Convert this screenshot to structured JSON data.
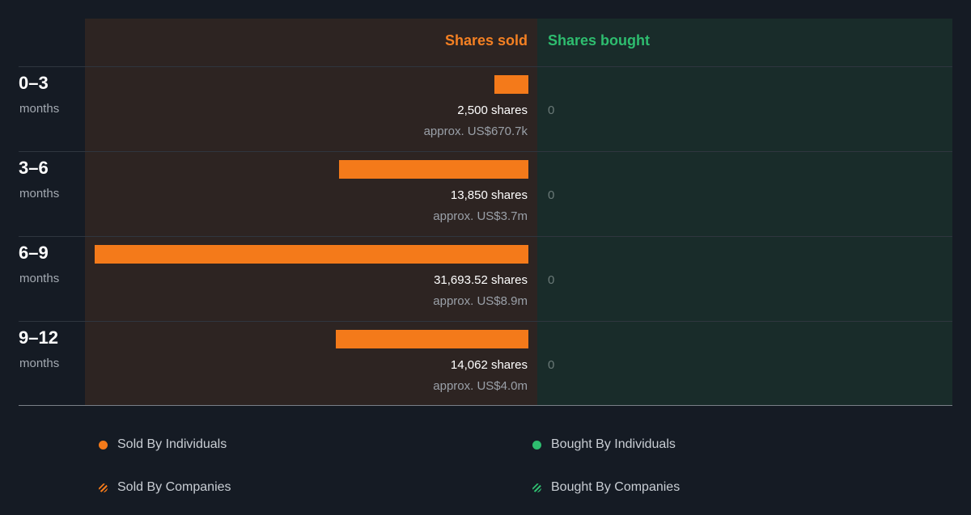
{
  "chart_data": {
    "type": "bar",
    "orientation": "horizontal",
    "title": "",
    "columns": {
      "sold_label": "Shares sold",
      "bought_label": "Shares bought"
    },
    "unit_label": "months",
    "categories": [
      "0–3",
      "3–6",
      "6–9",
      "9–12"
    ],
    "series": [
      {
        "name": "Shares sold",
        "values": [
          2500,
          13850,
          31693.52,
          14062
        ],
        "share_labels": [
          "2,500 shares",
          "13,850 shares",
          "31,693.52 shares",
          "14,062 shares"
        ],
        "value_labels": [
          "approx. US$670.7k",
          "approx. US$3.7m",
          "approx. US$8.9m",
          "approx. US$4.0m"
        ]
      },
      {
        "name": "Shares bought",
        "values": [
          0,
          0,
          0,
          0
        ],
        "share_labels": [
          "0",
          "0",
          "0",
          "0"
        ]
      }
    ],
    "legend": [
      {
        "label": "Sold By Individuals",
        "color": "#f47a1a",
        "style": "solid"
      },
      {
        "label": "Bought By Individuals",
        "color": "#2ebd6f",
        "style": "solid"
      },
      {
        "label": "Sold By Companies",
        "color": "#f47a1a",
        "style": "striped"
      },
      {
        "label": "Bought By Companies",
        "color": "#2ebd6f",
        "style": "striped"
      }
    ],
    "legend_position": "bottom",
    "colors": {
      "sold": "#f47a1a",
      "bought": "#2ebd6f",
      "sold_header": "#f48023",
      "sold_column_bg": "#2d2422",
      "bought_column_bg": "#192c2a",
      "page_bg": "#151b24"
    }
  }
}
